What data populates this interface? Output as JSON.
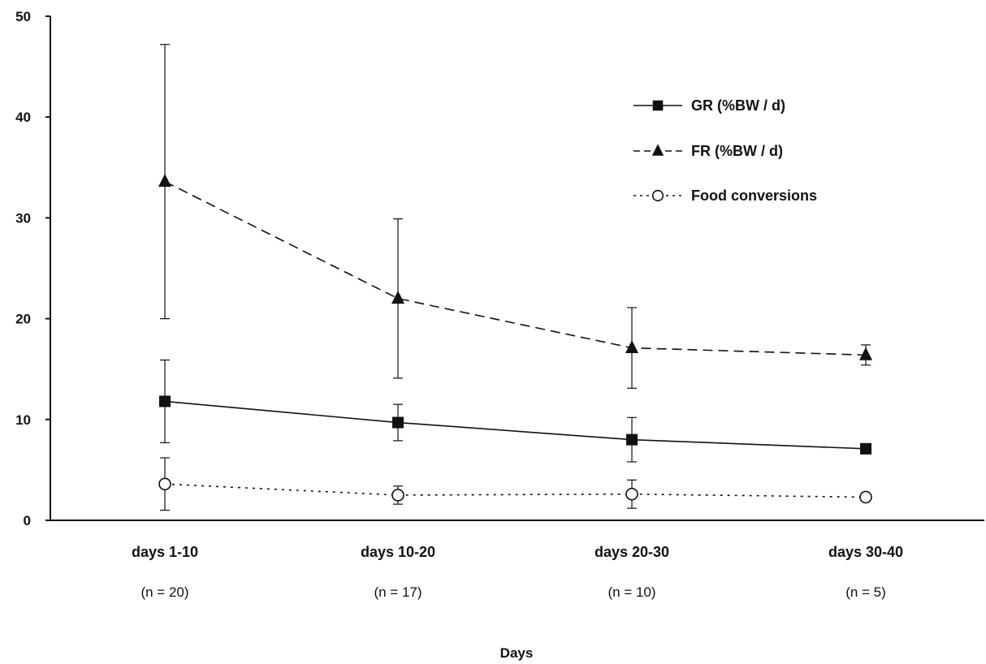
{
  "chart_data": {
    "type": "line",
    "title": "",
    "xlabel": "Days",
    "ylabel": "",
    "ylim": [
      0,
      50
    ],
    "yticks": [
      0,
      10,
      20,
      30,
      40,
      50
    ],
    "grid": false,
    "legend_position": "top-right",
    "categories": [
      "days 1-10",
      "days 10-20",
      "days 20-30",
      "days 30-40"
    ],
    "sample_sizes": [
      "(n = 20)",
      "(n = 17)",
      "(n = 10)",
      "(n = 5)"
    ],
    "series": [
      {
        "name": "GR (%BW / d)",
        "marker": "square",
        "line": "solid",
        "values": [
          11.8,
          9.7,
          8.0,
          7.1
        ],
        "errors": [
          4.1,
          1.8,
          2.2,
          0.5
        ]
      },
      {
        "name": "FR (%BW / d)",
        "marker": "triangle",
        "line": "dashed",
        "values": [
          33.6,
          22.0,
          17.1,
          16.4
        ],
        "errors": [
          13.6,
          7.9,
          4.0,
          1.0
        ]
      },
      {
        "name": "Food conversions",
        "marker": "open-circle",
        "line": "dotted",
        "values": [
          3.6,
          2.5,
          2.6,
          2.3
        ],
        "errors": [
          2.6,
          0.9,
          1.4,
          0.0
        ]
      }
    ]
  }
}
